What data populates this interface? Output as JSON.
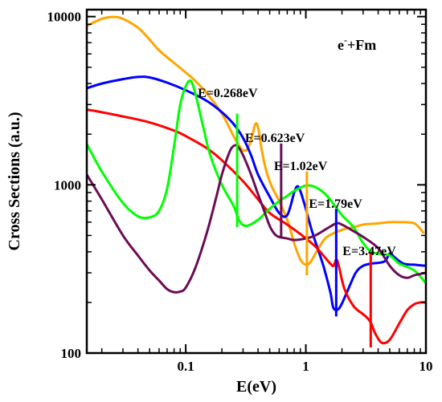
{
  "chart_data": {
    "type": "line",
    "title": "",
    "xlabel": "E(eV)",
    "ylabel": "Cross Sections (a.u.)",
    "xscale": "log",
    "yscale": "log",
    "xlim": [
      0.015,
      10
    ],
    "ylim": [
      100,
      11000
    ],
    "grid": false,
    "legend": "none",
    "xticks": [
      {
        "value": 0.1,
        "label": "0.1"
      },
      {
        "value": 1,
        "label": "1"
      },
      {
        "value": 10,
        "label": "10"
      }
    ],
    "yticks": [
      {
        "value": 100,
        "label": "100"
      },
      {
        "value": 1000,
        "label": "1000"
      },
      {
        "value": 10000,
        "label": "10000"
      }
    ],
    "reaction_label": {
      "base": "e",
      "superscript": "-",
      "rest": "+Fm"
    },
    "series": [
      {
        "color": "#ffa500",
        "points": [
          [
            0.015,
            8800
          ],
          [
            0.02,
            9700
          ],
          [
            0.025,
            9950
          ],
          [
            0.03,
            9700
          ],
          [
            0.04,
            8600
          ],
          [
            0.05,
            7300
          ],
          [
            0.06,
            6300
          ],
          [
            0.08,
            5300
          ],
          [
            0.1,
            4650
          ],
          [
            0.12,
            4150
          ],
          [
            0.15,
            3500
          ],
          [
            0.2,
            2650
          ],
          [
            0.25,
            1950
          ],
          [
            0.28,
            1700
          ],
          [
            0.3,
            1600
          ],
          [
            0.33,
            1650
          ],
          [
            0.36,
            2000
          ],
          [
            0.38,
            2300
          ],
          [
            0.4,
            2200
          ],
          [
            0.43,
            1600
          ],
          [
            0.47,
            1200
          ],
          [
            0.52,
            980
          ],
          [
            0.6,
            800
          ],
          [
            0.7,
            620
          ],
          [
            0.8,
            450
          ],
          [
            0.9,
            360
          ],
          [
            1.0,
            335
          ],
          [
            1.1,
            350
          ],
          [
            1.3,
            430
          ],
          [
            1.5,
            490
          ],
          [
            2.0,
            540
          ],
          [
            2.5,
            560
          ],
          [
            3.0,
            580
          ],
          [
            4.0,
            590
          ],
          [
            5.0,
            600
          ],
          [
            6.0,
            600
          ],
          [
            8.0,
            590
          ],
          [
            9.5,
            520
          ]
        ]
      },
      {
        "color": "#0000ff",
        "points": [
          [
            0.015,
            3750
          ],
          [
            0.02,
            4000
          ],
          [
            0.03,
            4250
          ],
          [
            0.04,
            4380
          ],
          [
            0.05,
            4350
          ],
          [
            0.07,
            4050
          ],
          [
            0.1,
            3650
          ],
          [
            0.15,
            3150
          ],
          [
            0.2,
            2700
          ],
          [
            0.25,
            2300
          ],
          [
            0.3,
            1900
          ],
          [
            0.35,
            1500
          ],
          [
            0.4,
            1150
          ],
          [
            0.5,
            850
          ],
          [
            0.6,
            680
          ],
          [
            0.7,
            660
          ],
          [
            0.8,
            900
          ],
          [
            0.85,
            980
          ],
          [
            0.9,
            920
          ],
          [
            1.0,
            720
          ],
          [
            1.1,
            560
          ],
          [
            1.2,
            460
          ],
          [
            1.4,
            330
          ],
          [
            1.6,
            230
          ],
          [
            1.7,
            185
          ],
          [
            1.9,
            185
          ],
          [
            2.2,
            230
          ],
          [
            2.6,
            300
          ],
          [
            3.0,
            330
          ],
          [
            3.5,
            340
          ],
          [
            4.5,
            350
          ],
          [
            5.0,
            390
          ],
          [
            5.5,
            370
          ],
          [
            6.5,
            340
          ],
          [
            8.0,
            335
          ],
          [
            10,
            330
          ]
        ]
      },
      {
        "color": "#ff0000",
        "points": [
          [
            0.015,
            2800
          ],
          [
            0.02,
            2700
          ],
          [
            0.03,
            2550
          ],
          [
            0.05,
            2350
          ],
          [
            0.08,
            2100
          ],
          [
            0.1,
            1950
          ],
          [
            0.15,
            1650
          ],
          [
            0.2,
            1400
          ],
          [
            0.3,
            1050
          ],
          [
            0.4,
            820
          ],
          [
            0.5,
            680
          ],
          [
            0.7,
            580
          ],
          [
            0.9,
            510
          ],
          [
            1.0,
            480
          ],
          [
            1.2,
            430
          ],
          [
            1.4,
            380
          ],
          [
            1.6,
            340
          ],
          [
            1.7,
            330
          ],
          [
            1.8,
            360
          ],
          [
            1.9,
            320
          ],
          [
            2.1,
            240
          ],
          [
            2.5,
            190
          ],
          [
            3.0,
            170
          ],
          [
            3.3,
            160
          ],
          [
            3.5,
            150
          ],
          [
            3.8,
            130
          ],
          [
            4.3,
            115
          ],
          [
            5.0,
            120
          ],
          [
            6.0,
            150
          ],
          [
            7.0,
            180
          ],
          [
            8.0,
            195
          ],
          [
            9.0,
            200
          ],
          [
            10,
            200
          ]
        ]
      },
      {
        "color": "#00ff00",
        "points": [
          [
            0.015,
            1750
          ],
          [
            0.02,
            1200
          ],
          [
            0.03,
            780
          ],
          [
            0.04,
            650
          ],
          [
            0.05,
            640
          ],
          [
            0.06,
            700
          ],
          [
            0.07,
            950
          ],
          [
            0.08,
            1700
          ],
          [
            0.09,
            3000
          ],
          [
            0.1,
            3850
          ],
          [
            0.11,
            4150
          ],
          [
            0.12,
            3500
          ],
          [
            0.14,
            2200
          ],
          [
            0.16,
            1500
          ],
          [
            0.2,
            1000
          ],
          [
            0.25,
            750
          ],
          [
            0.28,
            610
          ],
          [
            0.32,
            570
          ],
          [
            0.4,
            620
          ],
          [
            0.5,
            720
          ],
          [
            0.6,
            800
          ],
          [
            0.7,
            860
          ],
          [
            0.8,
            920
          ],
          [
            1.0,
            990
          ],
          [
            1.2,
            970
          ],
          [
            1.5,
            860
          ],
          [
            2.0,
            660
          ],
          [
            2.5,
            560
          ],
          [
            3.0,
            450
          ],
          [
            3.5,
            400
          ],
          [
            4.0,
            390
          ],
          [
            5.0,
            380
          ],
          [
            6.0,
            340
          ],
          [
            8.0,
            310
          ],
          [
            10,
            260
          ]
        ]
      },
      {
        "color": "#6b0d55",
        "points": [
          [
            0.015,
            1150
          ],
          [
            0.02,
            820
          ],
          [
            0.03,
            500
          ],
          [
            0.04,
            380
          ],
          [
            0.05,
            310
          ],
          [
            0.06,
            270
          ],
          [
            0.07,
            240
          ],
          [
            0.08,
            230
          ],
          [
            0.09,
            232
          ],
          [
            0.1,
            245
          ],
          [
            0.12,
            320
          ],
          [
            0.15,
            520
          ],
          [
            0.18,
            850
          ],
          [
            0.2,
            1150
          ],
          [
            0.23,
            1550
          ],
          [
            0.25,
            1700
          ],
          [
            0.27,
            1700
          ],
          [
            0.3,
            1500
          ],
          [
            0.35,
            1150
          ],
          [
            0.4,
            880
          ],
          [
            0.45,
            700
          ],
          [
            0.5,
            570
          ],
          [
            0.55,
            510
          ],
          [
            0.6,
            490
          ],
          [
            0.7,
            480
          ],
          [
            0.8,
            470
          ],
          [
            1.0,
            480
          ],
          [
            1.2,
            500
          ],
          [
            1.5,
            550
          ],
          [
            1.8,
            590
          ],
          [
            2.0,
            580
          ],
          [
            2.5,
            530
          ],
          [
            3.0,
            490
          ],
          [
            4.0,
            420
          ],
          [
            5.0,
            330
          ],
          [
            6.0,
            290
          ],
          [
            7.0,
            280
          ],
          [
            8.0,
            290
          ],
          [
            10,
            300
          ]
        ]
      }
    ],
    "annotations": [
      {
        "text": "E=0.268eV",
        "energy": 0.268,
        "color": "#00ff00",
        "line_from": 560,
        "line_to": 2650
      },
      {
        "text": "E=0.623eV",
        "energy": 0.623,
        "color": "#6b0d55",
        "line_from": 490,
        "line_to": 1760
      },
      {
        "text": "E=1.02eV",
        "energy": 1.02,
        "color": "#ffa500",
        "line_from": 290,
        "line_to": 1200
      },
      {
        "text": "E=1.79eV",
        "energy": 1.79,
        "color": "#0000ff",
        "line_from": 165,
        "line_to": 720
      },
      {
        "text": "E=3.47eV",
        "energy": 3.47,
        "color": "#ff0000",
        "line_from": 108,
        "line_to": 390
      }
    ]
  }
}
